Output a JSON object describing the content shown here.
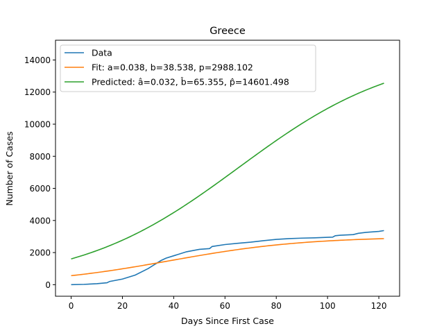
{
  "chart_data": {
    "type": "line",
    "title": "Greece",
    "xlabel": "Days Since First Case",
    "ylabel": "Number of Cases",
    "xlim": [
      -6.1,
      128.1
    ],
    "ylim": [
      -720,
      15230
    ],
    "xticks": [
      0,
      20,
      40,
      60,
      80,
      100,
      120
    ],
    "yticks": [
      0,
      2000,
      4000,
      6000,
      8000,
      10000,
      12000,
      14000
    ],
    "grid": false,
    "legend_position": "top-left",
    "series": [
      {
        "name": "Data",
        "color": "#1f77b4",
        "x": [
          0,
          5,
          10,
          14,
          15,
          20,
          25,
          30,
          35,
          37,
          40,
          45,
          50,
          54,
          55,
          60,
          65,
          70,
          75,
          80,
          85,
          90,
          95,
          100,
          102,
          103,
          105,
          110,
          112,
          115,
          120,
          122
        ],
        "y": [
          0,
          20,
          60,
          120,
          200,
          350,
          600,
          1000,
          1500,
          1650,
          1800,
          2050,
          2200,
          2250,
          2380,
          2500,
          2580,
          2650,
          2740,
          2820,
          2870,
          2900,
          2920,
          2950,
          2960,
          3050,
          3080,
          3120,
          3200,
          3260,
          3320,
          3370
        ]
      },
      {
        "name": "Fit: a=0.038, b=38.538, p=2988.102",
        "color": "#ff7f0e",
        "model": {
          "a": 0.038,
          "b": 38.538,
          "p": 2988.102
        }
      },
      {
        "name": "Predicted: â=0.032, b̂=65.355, p̂=14601.498",
        "color": "#2ca02c",
        "model": {
          "a": 0.032,
          "b": 65.355,
          "p": 14601.498
        }
      }
    ]
  }
}
